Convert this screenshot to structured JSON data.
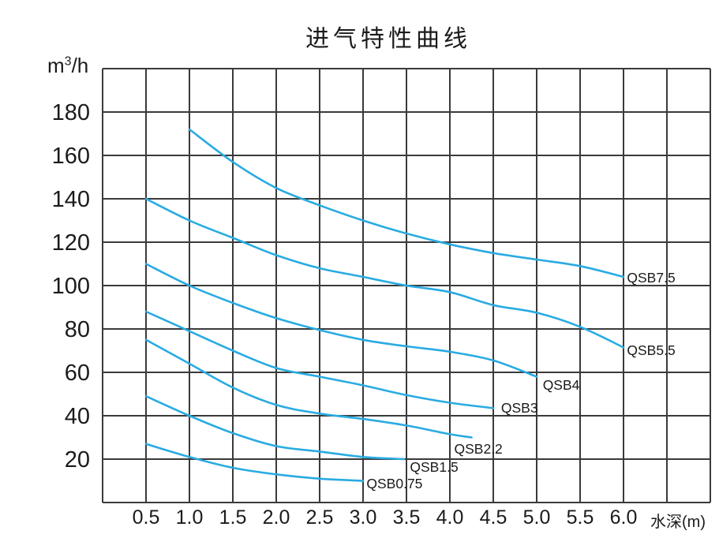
{
  "chart_data": {
    "type": "line",
    "title": "进气特性曲线",
    "xlabel": "水深(m)",
    "ylabel": "m³/h",
    "y_unit": {
      "base": "m",
      "sup": "3",
      "rest": "/h"
    },
    "xlim": [
      0,
      7
    ],
    "ylim": [
      0,
      200
    ],
    "x_grid_step": 0.5,
    "y_grid_step": 20,
    "grid": true,
    "legend_position": "inline-labels-at-curve-ends",
    "x_ticks": {
      "values": [
        0.5,
        1.0,
        1.5,
        2.0,
        2.5,
        3.0,
        3.5,
        4.0,
        4.5,
        5.0,
        5.5,
        6.0
      ],
      "labels": [
        "0.5",
        "1.0",
        "1.5",
        "2.0",
        "2.5",
        "3.0",
        "3.5",
        "4.0",
        "4.5",
        "5.0",
        "5.5",
        "6.0"
      ]
    },
    "y_ticks": {
      "values": [
        20,
        40,
        60,
        80,
        100,
        120,
        140,
        160,
        180
      ],
      "labels": [
        "20",
        "40",
        "60",
        "80",
        "100",
        "120",
        "140",
        "160",
        "180"
      ]
    },
    "series": [
      {
        "name": "QSB7.5",
        "x": [
          1.0,
          1.5,
          2.0,
          2.5,
          3.0,
          3.5,
          4.0,
          4.5,
          5.0,
          5.5,
          6.0
        ],
        "y": [
          172,
          157,
          145,
          137,
          130,
          124,
          119,
          115,
          112,
          109,
          104
        ],
        "label_pos": [
          6.04,
          101.5
        ]
      },
      {
        "name": "QSB5.5",
        "x": [
          0.5,
          1.0,
          1.5,
          2.0,
          2.5,
          3.0,
          3.5,
          4.0,
          4.5,
          5.0,
          5.5,
          6.0
        ],
        "y": [
          140,
          130,
          122,
          114,
          108,
          104,
          100,
          97,
          91,
          87.5,
          81,
          71.5
        ],
        "label_pos": [
          6.04,
          68
        ]
      },
      {
        "name": "QSB4",
        "x": [
          0.5,
          1.0,
          1.5,
          2.0,
          2.5,
          3.0,
          3.5,
          4.0,
          4.5,
          5.0
        ],
        "y": [
          110,
          100,
          92,
          85,
          79.5,
          75,
          72,
          69.5,
          65.5,
          58
        ],
        "label_pos": [
          5.07,
          52
        ]
      },
      {
        "name": "QSB3",
        "x": [
          0.5,
          1.0,
          1.5,
          2.0,
          2.5,
          3.0,
          3.5,
          4.0,
          4.5
        ],
        "y": [
          88,
          79,
          70,
          62,
          58,
          54,
          49.5,
          46,
          43.5
        ],
        "label_pos": [
          4.59,
          41.5
        ]
      },
      {
        "name": "QSB2.2",
        "x": [
          0.5,
          1.0,
          1.5,
          2.0,
          2.5,
          3.0,
          3.5,
          4.0,
          4.25
        ],
        "y": [
          75,
          64,
          53,
          45,
          41,
          38.5,
          35.5,
          31.5,
          30
        ],
        "label_pos": [
          4.05,
          22.5
        ]
      },
      {
        "name": "QSB1.5",
        "x": [
          0.5,
          1.0,
          1.5,
          2.0,
          2.5,
          3.0,
          3.47
        ],
        "y": [
          49,
          40,
          32,
          26,
          23.5,
          21,
          20
        ],
        "label_pos": [
          3.54,
          14.2
        ]
      },
      {
        "name": "QSB0.75",
        "x": [
          0.5,
          1.0,
          1.5,
          2.0,
          2.5,
          3.0
        ],
        "y": [
          27,
          21,
          16,
          13,
          11,
          10
        ],
        "label_pos": [
          3.04,
          6.5
        ]
      }
    ]
  },
  "style": {
    "curve_color": "#29ABE2",
    "grid_color": "#3a3a3a",
    "text_color": "#1b1b1b",
    "background_color": "#ffffff"
  }
}
